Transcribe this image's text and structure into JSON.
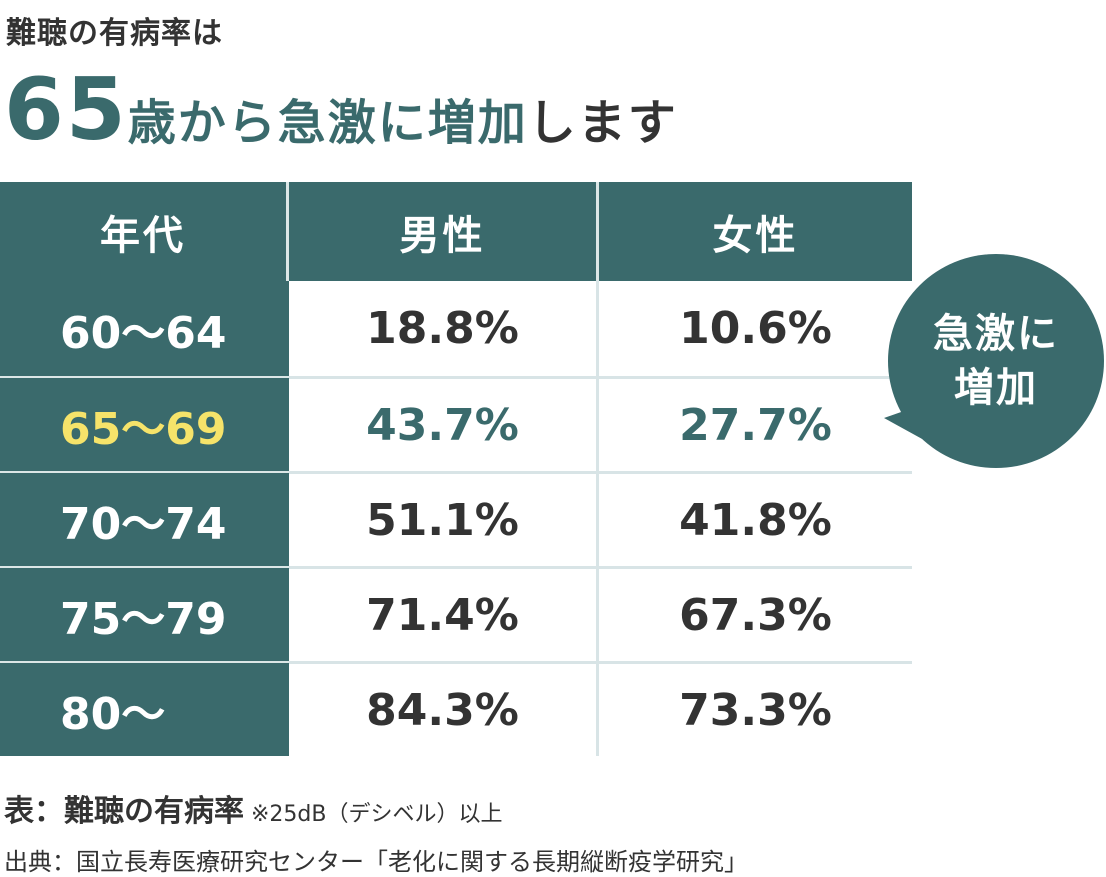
{
  "heading": {
    "small": "難聴の有病率は",
    "age": "65",
    "mid": "歳から急激に増加",
    "end": "します"
  },
  "table": {
    "columns": [
      "年代",
      "男性",
      "女性"
    ],
    "rows": [
      {
        "age": "60〜64",
        "male": "18.8%",
        "female": "10.6%"
      },
      {
        "age": "65〜69",
        "male": "43.7%",
        "female": "27.7%"
      },
      {
        "age": "70〜74",
        "male": "51.1%",
        "female": "41.8%"
      },
      {
        "age": "75〜79",
        "male": "71.4%",
        "female": "67.3%"
      },
      {
        "age": "80〜",
        "male": "84.3%",
        "female": "73.3%"
      }
    ]
  },
  "bubble": {
    "line1": "急激に",
    "line2": "増加"
  },
  "caption": {
    "title": "表：難聴の有病率",
    "note": " ※25dB（デシベル）以上"
  },
  "source": "出典：国立長寿医療研究センター「老化に関する長期縦断疫学研究」",
  "colors": {
    "accent": "#3a6a6c",
    "highlight": "#f6e36a",
    "divider": "#d8e4e6"
  }
}
